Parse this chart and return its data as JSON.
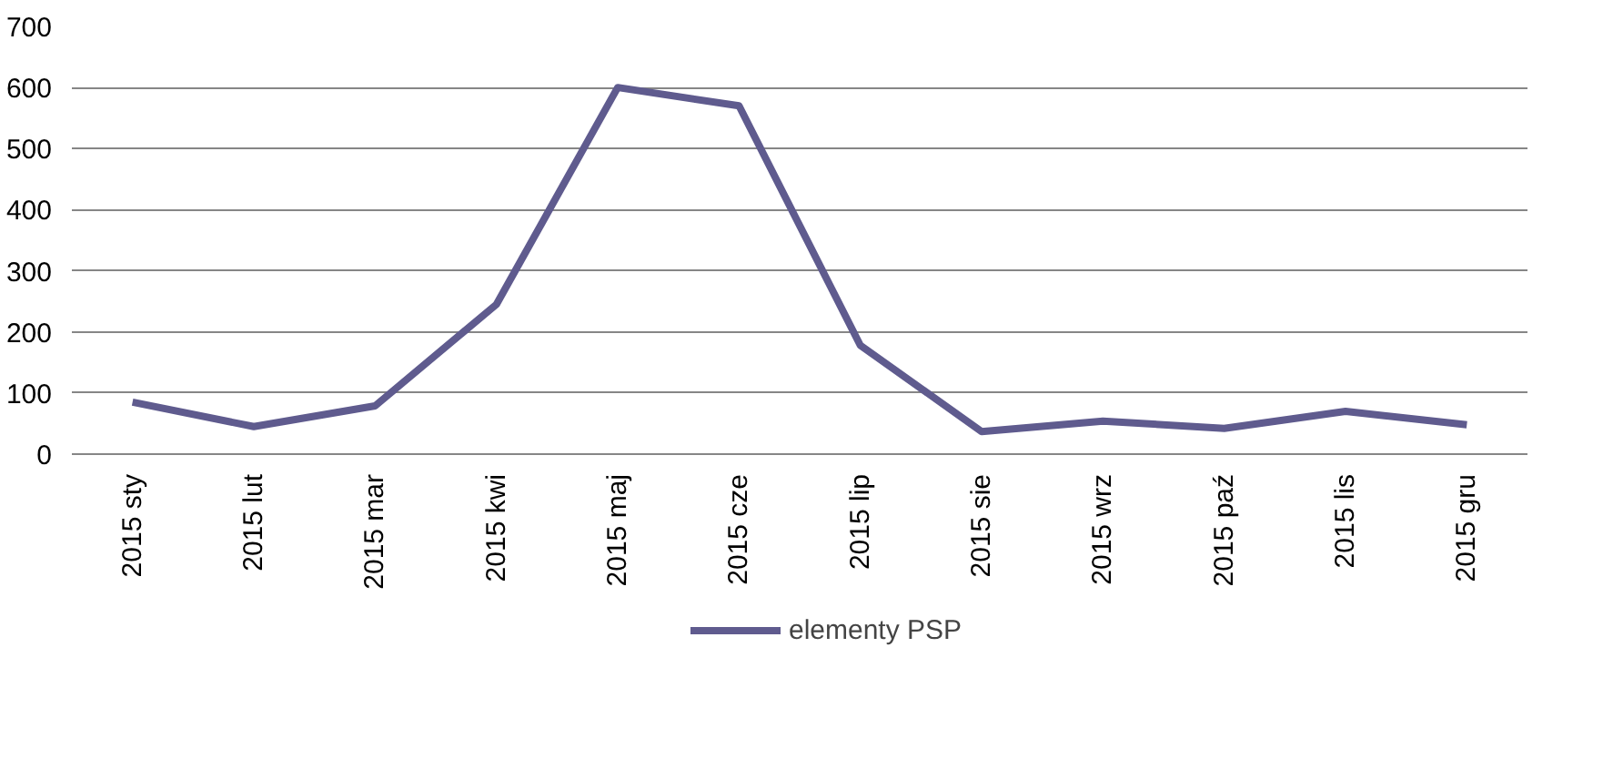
{
  "chart_data": {
    "type": "line",
    "categories": [
      "2015 sty",
      "2015 lut",
      "2015 mar",
      "2015 kwi",
      "2015 maj",
      "2015 cze",
      "2015 lip",
      "2015 sie",
      "2015 wrz",
      "2015 paź",
      "2015 lis",
      "2015 gru"
    ],
    "series": [
      {
        "name": "elementy PSP",
        "color": "#5f5b8e",
        "values": [
          85,
          45,
          79,
          245,
          600,
          570,
          178,
          37,
          54,
          42,
          70,
          48
        ]
      }
    ],
    "ylim": [
      0,
      700
    ],
    "yticks": [
      0,
      100,
      200,
      300,
      400,
      500,
      600,
      700
    ],
    "grid": "y",
    "legend": "bottom",
    "marker": "none",
    "line_style": "solid"
  }
}
